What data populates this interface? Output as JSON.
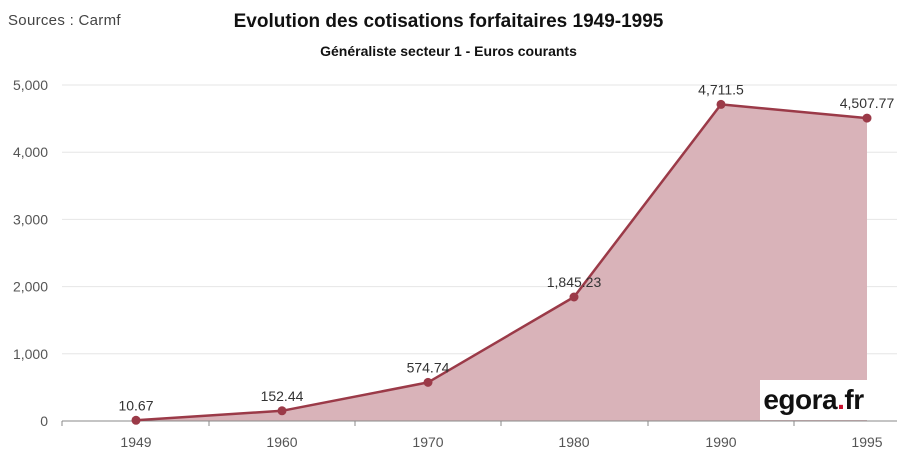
{
  "source": "Sources : Carmf",
  "logo": {
    "part1": "egora",
    "part2": ".",
    "part3": "fr"
  },
  "colors": {
    "line": "#9b3a48",
    "fill": "#d9b3b9",
    "axis": "#888888",
    "grid": "#e6e6e6",
    "label": "#555555"
  },
  "chart_data": {
    "type": "area",
    "title": "Evolution des cotisations forfaitaires 1949-1995",
    "subtitle": "Généraliste secteur 1 - Euros courants",
    "x": [
      "1949",
      "1960",
      "1970",
      "1980",
      "1990",
      "1995"
    ],
    "values": [
      10.67,
      152.44,
      574.74,
      1845.23,
      4711.5,
      4507.77
    ],
    "data_labels": [
      "10.67",
      "152.44",
      "574.74",
      "1,845.23",
      "4,711.5",
      "4,507.77"
    ],
    "y_ticks": [
      0,
      1000,
      2000,
      3000,
      4000,
      5000
    ],
    "y_tick_labels": [
      "0",
      "1,000",
      "2,000",
      "3,000",
      "4,000",
      "5,000"
    ],
    "ylim": [
      0,
      5000
    ],
    "grid": true,
    "xlabel": "",
    "ylabel": ""
  }
}
